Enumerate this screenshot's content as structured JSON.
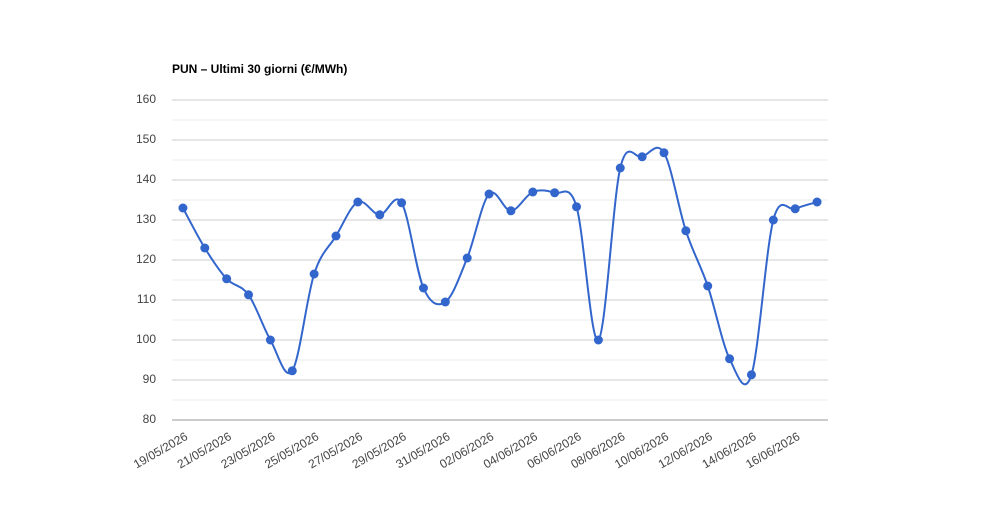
{
  "chart_data": {
    "type": "line",
    "title": "PUN – Ultimi 30 giorni (€/MWh)",
    "categories": [
      "19/05/2026",
      null,
      "21/05/2026",
      null,
      "23/05/2026",
      null,
      "25/05/2026",
      null,
      "27/05/2026",
      null,
      "29/05/2026",
      null,
      "31/05/2026",
      null,
      "02/06/2026",
      null,
      "04/06/2026",
      null,
      "06/06/2026",
      null,
      "08/06/2026",
      null,
      "10/06/2026",
      null,
      "12/06/2026",
      null,
      "14/06/2026",
      null,
      "16/06/2026",
      null
    ],
    "series": [
      {
        "name": "PUN",
        "color": "#3366cc",
        "values": [
          133,
          123,
          115.3,
          111.3,
          100,
          92.3,
          116.5,
          126,
          134.5,
          131.3,
          134.3,
          113,
          109.5,
          120.5,
          136.5,
          132.3,
          137,
          136.8,
          133.3,
          100,
          143,
          145.8,
          146.8,
          127.3,
          113.5,
          95.3,
          91.3,
          130,
          132.8,
          134.5
        ]
      }
    ],
    "ylim": [
      80,
      160
    ],
    "yticks": [
      80,
      90,
      100,
      110,
      120,
      130,
      140,
      150,
      160
    ],
    "grid": true,
    "minor_grid": true,
    "smooth": true
  }
}
